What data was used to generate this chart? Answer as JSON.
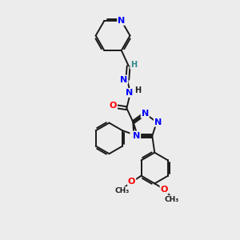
{
  "background_color": "#ececec",
  "bond_color": "#1a1a1a",
  "nitrogen_color": "#0000ff",
  "oxygen_color": "#ff0000",
  "sulfur_color": "#ccaa00",
  "carbon_color": "#1a1a1a",
  "hydrogen_color": "#2d8888",
  "figsize": [
    3.0,
    3.0
  ],
  "dpi": 100,
  "xlim": [
    0,
    10
  ],
  "ylim": [
    0,
    10
  ]
}
